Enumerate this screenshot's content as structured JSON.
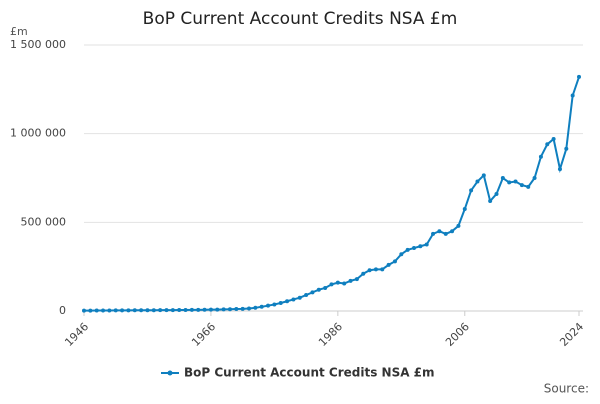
{
  "chart_data": {
    "type": "line",
    "title": "BoP Current Account Credits NSA £m",
    "y_unit": "£m",
    "source": "Source:",
    "x": [
      1946,
      1947,
      1948,
      1949,
      1950,
      1951,
      1952,
      1953,
      1954,
      1955,
      1956,
      1957,
      1958,
      1959,
      1960,
      1961,
      1962,
      1963,
      1964,
      1965,
      1966,
      1967,
      1968,
      1969,
      1970,
      1971,
      1972,
      1973,
      1974,
      1975,
      1976,
      1977,
      1978,
      1979,
      1980,
      1981,
      1982,
      1983,
      1984,
      1985,
      1986,
      1987,
      1988,
      1989,
      1990,
      1991,
      1992,
      1993,
      1994,
      1995,
      1996,
      1997,
      1998,
      1999,
      2000,
      2001,
      2002,
      2003,
      2004,
      2005,
      2006,
      2007,
      2008,
      2009,
      2010,
      2011,
      2012,
      2013,
      2014,
      2015,
      2016,
      2017,
      2018,
      2019,
      2020,
      2021,
      2022,
      2023,
      2024
    ],
    "series": [
      {
        "name": "BoP Current Account Credits NSA £m",
        "color": "#0f7fbf",
        "values": [
          2000,
          2200,
          2500,
          2800,
          3000,
          3200,
          3500,
          3700,
          3900,
          4100,
          4300,
          4500,
          4700,
          4900,
          5200,
          5500,
          5800,
          6200,
          6600,
          7000,
          7500,
          8000,
          9000,
          10000,
          11000,
          12000,
          14000,
          18000,
          24000,
          30000,
          37000,
          45000,
          55000,
          65000,
          75000,
          90000,
          105000,
          120000,
          130000,
          150000,
          160000,
          155000,
          170000,
          180000,
          210000,
          230000,
          235000,
          235000,
          260000,
          280000,
          320000,
          345000,
          355000,
          365000,
          375000,
          435000,
          450000,
          435000,
          450000,
          480000,
          575000,
          680000,
          730000,
          765000,
          620000,
          660000,
          750000,
          725000,
          730000,
          710000,
          700000,
          750000,
          870000,
          940000,
          970000,
          800000,
          915000,
          1215000,
          1320000
        ]
      }
    ],
    "xlim": [
      1946,
      2024
    ],
    "xticks": [
      1946,
      1966,
      1986,
      2006,
      2024
    ],
    "ylim": [
      0,
      1500000
    ],
    "yticks": [
      0,
      {
        "value": 500000,
        "label": "500 000"
      },
      {
        "value": 1000000,
        "label": "1 000 000"
      },
      {
        "value": 1500000,
        "label": "1 500 000"
      }
    ],
    "grid": true
  }
}
